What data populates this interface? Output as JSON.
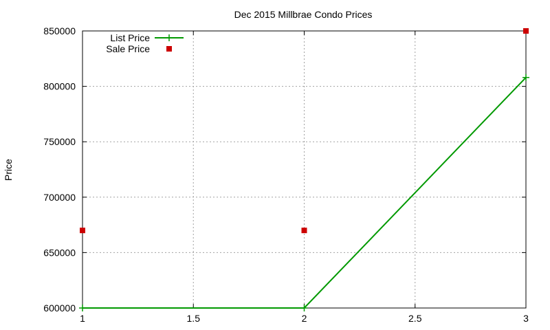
{
  "chart_data": {
    "type": "line",
    "title": "Dec 2015 Millbrae Condo Prices",
    "xlabel": "",
    "ylabel": "Price",
    "xlim": [
      1,
      3
    ],
    "ylim": [
      600000,
      850000
    ],
    "x_ticks": [
      1,
      1.5,
      2,
      2.5,
      3
    ],
    "x_tick_labels": [
      "1",
      "1.5",
      "2",
      "2.5",
      "3"
    ],
    "y_ticks": [
      600000,
      650000,
      700000,
      750000,
      800000,
      850000
    ],
    "y_tick_labels": [
      "600000",
      "650000",
      "700000",
      "750000",
      "800000",
      "850000"
    ],
    "grid": true,
    "legend_position": "top-left",
    "series": [
      {
        "name": "List Price",
        "style": "line-with-plus-markers",
        "color": "#009900",
        "x": [
          1,
          2,
          3
        ],
        "y": [
          600000,
          600000,
          808000
        ]
      },
      {
        "name": "Sale Price",
        "style": "square-markers",
        "color": "#cc0000",
        "x": [
          1,
          2,
          3
        ],
        "y": [
          670000,
          670000,
          850000
        ]
      }
    ]
  }
}
